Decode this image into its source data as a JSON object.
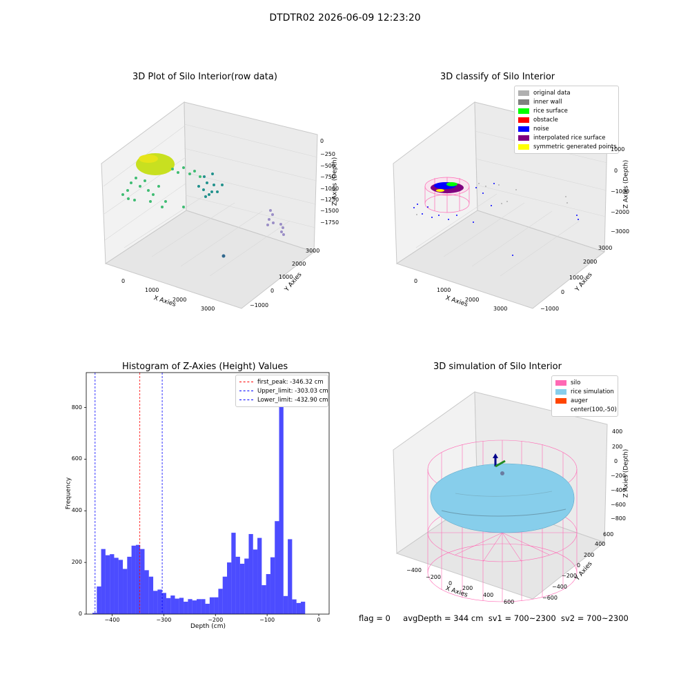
{
  "suptitle": "DTDTR02 2026-06-09 12:23:20",
  "footer": {
    "flag": "flag = 0",
    "avg_depth": "avgDepth = 344 cm",
    "sv1": "sv1 = 700~2300",
    "sv2": "sv2 = 700~2300"
  },
  "panels": {
    "raw": {
      "title": "3D Plot of Silo Interior(row data)",
      "xlabel": "X Axies",
      "ylabel": "Y Axies",
      "zlabel": "Z Axies (Depth)",
      "xticks": [
        "0",
        "1000",
        "2000",
        "3000"
      ],
      "yticks": [
        "3000",
        "2000",
        "1000",
        "0",
        "−1000"
      ],
      "zticks": [
        "0",
        "−250",
        "−500",
        "−750",
        "−1000",
        "−1250",
        "−1500",
        "−1750"
      ]
    },
    "classify": {
      "title": "3D classify of Silo Interior",
      "xlabel": "X Axies",
      "ylabel": "Y Axies",
      "zlabel": "Z Axies (Depth)",
      "xticks": [
        "0",
        "1000",
        "2000",
        "3000"
      ],
      "yticks": [
        "3000",
        "2000",
        "1000",
        "0",
        "−1000"
      ],
      "zticks": [
        "1000",
        "0",
        "−1000",
        "−2000",
        "−3000"
      ],
      "legend": [
        {
          "label": "original data",
          "color": "#b0b0b0"
        },
        {
          "label": "inner wall",
          "color": "#808080"
        },
        {
          "label": "rice surface",
          "color": "#00ff00"
        },
        {
          "label": "obstacle",
          "color": "#ff0000"
        },
        {
          "label": "noise",
          "color": "#0000ff"
        },
        {
          "label": "interpolated rice surface",
          "color": "#800080"
        },
        {
          "label": "symmetric generated points",
          "color": "#ffff00"
        }
      ]
    },
    "simulation": {
      "title": "3D simulation of Silo Interior",
      "xlabel": "X Axies",
      "ylabel": "Y Axies",
      "zlabel": "Z Axies (Depth)",
      "xticks": [
        "−400",
        "−200",
        "0",
        "200",
        "400",
        "600"
      ],
      "yticks": [
        "600",
        "400",
        "200",
        "0",
        "−200",
        "−400",
        "−600"
      ],
      "zticks": [
        "400",
        "200",
        "0",
        "−200",
        "−400",
        "−600",
        "−800"
      ],
      "legend": [
        {
          "label": "silo",
          "color": "#ff69b4"
        },
        {
          "label": "rice simulation",
          "color": "#87ceeb"
        },
        {
          "label": "auger",
          "color": "#ff4500"
        },
        {
          "label": "center(100,-50)",
          "color": ""
        }
      ]
    }
  },
  "chart_data": {
    "type": "bar",
    "title": "Histogram of Z-Axies (Height) Values",
    "xlabel": "Depth (cm)",
    "ylabel": "Frequency",
    "xlim": [
      -450,
      20
    ],
    "ylim": [
      0,
      935
    ],
    "xticks": [
      -400,
      -300,
      -200,
      -100,
      0
    ],
    "yticks": [
      0,
      200,
      400,
      600,
      800
    ],
    "bar_color": "#0000ff",
    "bin_start": -438,
    "bin_width": 8.4,
    "values": [
      5,
      107,
      252,
      228,
      232,
      218,
      210,
      175,
      222,
      265,
      268,
      252,
      170,
      145,
      90,
      95,
      82,
      62,
      72,
      60,
      63,
      48,
      58,
      53,
      58,
      58,
      40,
      65,
      65,
      98,
      145,
      200,
      315,
      222,
      195,
      215,
      310,
      250,
      295,
      112,
      155,
      220,
      360,
      890,
      70,
      290,
      57,
      43,
      48
    ],
    "vlines": [
      {
        "label": "first_peak: -346.32 cm",
        "x": -346.32,
        "color": "#ff0000"
      },
      {
        "label": "Upper_limit: -303.03 cm",
        "x": -303.03,
        "color": "#0000ff"
      },
      {
        "label": "Lower_limit: -432.90 cm",
        "x": -432.9,
        "color": "#0000ff"
      }
    ],
    "legend_position": "top-right"
  }
}
